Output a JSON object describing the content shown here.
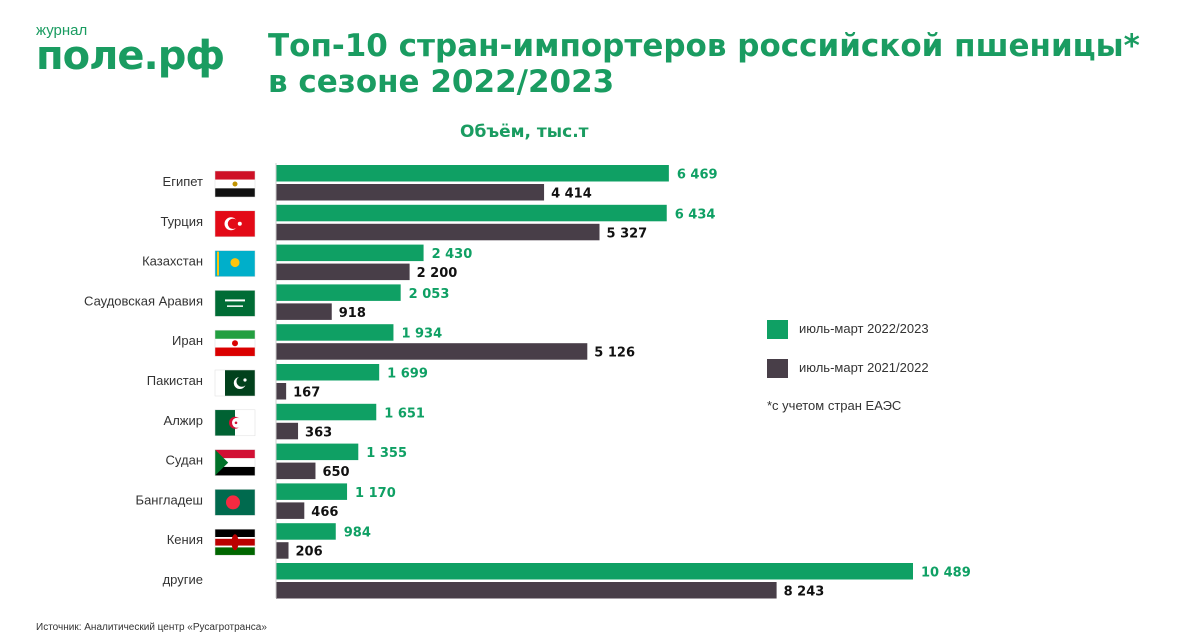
{
  "logo": {
    "small": "журнал",
    "big": "поле.рф"
  },
  "title": {
    "line1": "Топ-10 стран-импортеров российской пшеницы*",
    "line2": "в сезоне 2022/2023"
  },
  "subtitle": "Объём, тыс.т",
  "legend": {
    "items": [
      {
        "label": "июль-март 2022/2023",
        "color": "#0fa064"
      },
      {
        "label": "июль-март 2021/2022",
        "color": "#483e48"
      }
    ],
    "note": "*с учетом стран ЕАЭС"
  },
  "source": "Источник: Аналитический центр «Русагротранса»",
  "chart_data": {
    "type": "bar",
    "orientation": "horizontal",
    "title": "Объём, тыс.т",
    "categories": [
      "Египет",
      "Турция",
      "Казахстан",
      "Саудовская Аравия",
      "Иран",
      "Пакистан",
      "Алжир",
      "Судан",
      "Бангладеш",
      "Кения",
      "другие"
    ],
    "flags": [
      "egypt-flag",
      "turkey-flag",
      "kazakhstan-flag",
      "saudi-arabia-flag",
      "iran-flag",
      "pakistan-flag",
      "algeria-flag",
      "sudan-flag",
      "bangladesh-flag",
      "kenya-flag",
      ""
    ],
    "series": [
      {
        "name": "июль-март 2022/2023",
        "color": "#0fa064",
        "values": [
          6469,
          6434,
          2430,
          2053,
          1934,
          1699,
          1651,
          1355,
          1170,
          984,
          10489
        ],
        "labels": [
          "6 469",
          "6 434",
          "2 430",
          "2 053",
          "1 934",
          "1 699",
          "1 651",
          "1 355",
          "1 170",
          "984",
          "10 489"
        ]
      },
      {
        "name": "июль-март 2021/2022",
        "color": "#483e48",
        "values": [
          4414,
          5327,
          2200,
          918,
          5126,
          167,
          363,
          650,
          466,
          206,
          8243
        ],
        "labels": [
          "4 414",
          "5 327",
          "2 200",
          "918",
          "5 126",
          "167",
          "363",
          "650",
          "466",
          "206",
          "8 243"
        ]
      }
    ],
    "xlim": [
      0,
      10489
    ],
    "grid": false,
    "legend_position": "right"
  }
}
